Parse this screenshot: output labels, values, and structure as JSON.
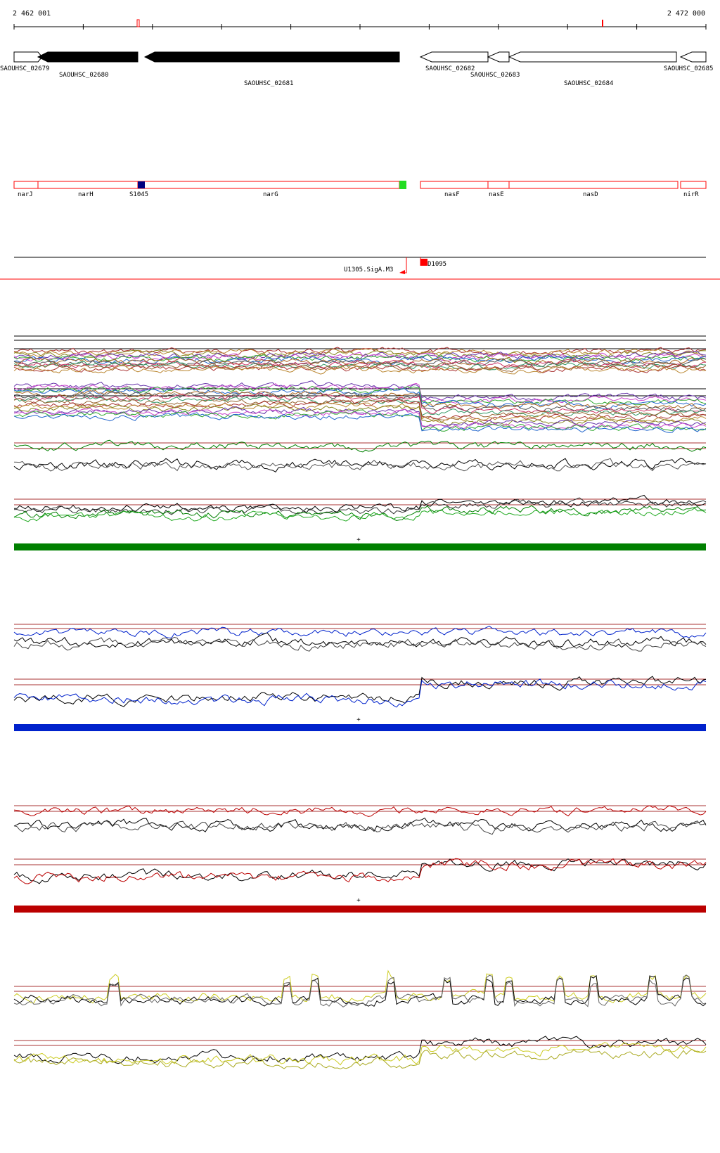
{
  "ruler": {
    "start_label": "2 462 001",
    "end_label": "2 472 000"
  },
  "genes": [
    {
      "label": "SAOUHSC_02679",
      "strand": "+",
      "fill": "#ffffff"
    },
    {
      "label": "SAOUHSC_02680",
      "strand": "-",
      "fill": "#000000"
    },
    {
      "label": "SAOUHSC_02681",
      "strand": "-",
      "fill": "#000000"
    },
    {
      "label": "SAOUHSC_02682",
      "strand": "-",
      "fill": "#ffffff"
    },
    {
      "label": "SAOUHSC_02683",
      "strand": "-",
      "fill": "#ffffff"
    },
    {
      "label": "SAOUHSC_02684",
      "strand": "-",
      "fill": "#ffffff"
    },
    {
      "label": "SAOUHSC_02685",
      "strand": "-",
      "fill": "#ffffff"
    }
  ],
  "gene_names": [
    {
      "label": "narJ"
    },
    {
      "label": "narH"
    },
    {
      "label": "S1045",
      "color": "#000080"
    },
    {
      "label": "narG"
    },
    {
      "label": "nasF"
    },
    {
      "label": "nasE"
    },
    {
      "label": "nasD"
    },
    {
      "label": "nirR"
    }
  ],
  "features": {
    "promoter_label": "U1305.SigA.M3",
    "terminator_label": "D1095",
    "accent_green": "#22dd22",
    "accent_red": "#ff0000"
  },
  "tracks": {
    "strand_marker": "+",
    "colors": {
      "green": "#008000",
      "blue": "#0022cc",
      "red": "#bb0000",
      "yellow": "#cccc22"
    }
  }
}
